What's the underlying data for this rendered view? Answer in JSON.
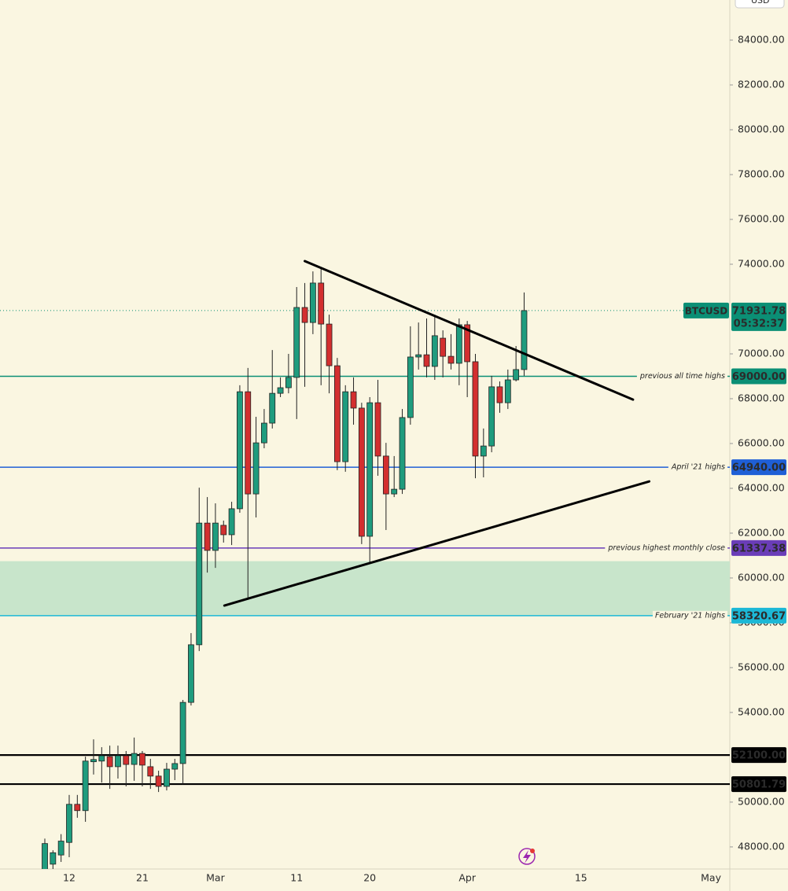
{
  "chart_data": {
    "type": "candlestick",
    "categories": [
      null,
      null,
      null,
      "12",
      null,
      null,
      null,
      null,
      null,
      null,
      null,
      null,
      "21",
      null,
      null,
      null,
      null,
      null,
      null,
      null,
      null,
      "Mar",
      null,
      null,
      null,
      null,
      null,
      null,
      null,
      null,
      null,
      "11",
      null,
      null,
      null,
      null,
      null,
      null,
      null,
      null,
      "20",
      null,
      null,
      null,
      null,
      null,
      null,
      null,
      null,
      null,
      null,
      null,
      "Apr",
      null,
      null,
      null,
      null,
      null,
      null,
      null,
      null,
      null,
      null,
      null,
      null,
      null,
      "15",
      null,
      null,
      null,
      null,
      null,
      null,
      null,
      null,
      null,
      null,
      null,
      null,
      null,
      null,
      null,
      "May"
    ],
    "series": [
      {
        "name": "BTCUSD",
        "up_color": "#1f9c7e",
        "down_color": "#d32f2f",
        "open": [
          46600,
          47230,
          47640,
          48200,
          49900,
          49620,
          51800,
          51830,
          52030,
          51580,
          52070,
          51680,
          52170,
          51580,
          51160,
          50700,
          51470,
          51720,
          54450,
          57020,
          62450,
          61230,
          62350,
          61930,
          63090,
          68310,
          63750,
          66030,
          66910,
          68240,
          68490,
          68950,
          72070,
          71400,
          73160,
          71330,
          69470,
          65190,
          68310,
          67580,
          61860,
          67820,
          65440,
          63750,
          63960,
          67160,
          69860,
          69960,
          69440,
          70700,
          69890,
          69580,
          71300,
          69650,
          65440,
          65890,
          68530,
          67820,
          68840,
          69300,
          null,
          null,
          null,
          null,
          null,
          null,
          null,
          null,
          null,
          null,
          null,
          null,
          null,
          null,
          null,
          null,
          null,
          null,
          null,
          null,
          null,
          null,
          null
        ],
        "high": [
          48370,
          47850,
          48570,
          50320,
          50320,
          52030,
          52800,
          52450,
          52520,
          52520,
          52280,
          52880,
          52280,
          51930,
          51400,
          51750,
          51930,
          54560,
          57540,
          64030,
          63610,
          63330,
          62560,
          63400,
          68600,
          69370,
          67190,
          67540,
          70170,
          68950,
          70000,
          72980,
          73160,
          73680,
          73790,
          71750,
          69820,
          68600,
          68950,
          67820,
          68070,
          68840,
          66030,
          65440,
          67540,
          71230,
          71400,
          71580,
          71750,
          71050,
          70880,
          71580,
          71470,
          70000,
          66670,
          69020,
          68770,
          69300,
          70350,
          72740,
          null,
          null,
          null,
          null,
          null,
          null,
          null,
          null,
          null,
          null,
          null,
          null,
          null,
          null,
          null,
          null,
          null,
          null,
          null,
          null,
          null,
          null,
          null
        ],
        "low": [
          46190,
          46820,
          47330,
          47540,
          49300,
          49120,
          51230,
          50870,
          50590,
          51050,
          50700,
          50950,
          50700,
          50590,
          50450,
          50520,
          50980,
          50800,
          54310,
          56740,
          60240,
          60450,
          61580,
          61470,
          62910,
          59120,
          62700,
          65790,
          66670,
          68070,
          68240,
          67090,
          68530,
          70880,
          68600,
          68240,
          64810,
          64740,
          66840,
          61510,
          60700,
          64560,
          62140,
          63610,
          63750,
          66840,
          69300,
          68950,
          68840,
          68950,
          69300,
          68600,
          68070,
          64450,
          64490,
          65610,
          67370,
          67540,
          68770,
          69020,
          null,
          null,
          null,
          null,
          null,
          null,
          null,
          null,
          null,
          null,
          null,
          null,
          null,
          null,
          null,
          null,
          null,
          null,
          null,
          null,
          null,
          null,
          null
        ],
        "close": [
          48150,
          47740,
          48260,
          49900,
          49620,
          51830,
          51900,
          52070,
          51580,
          52070,
          51680,
          52170,
          51650,
          51160,
          50700,
          51470,
          51720,
          54450,
          57020,
          62450,
          61230,
          62450,
          61930,
          63090,
          68310,
          63750,
          66030,
          66910,
          68240,
          68490,
          68950,
          72070,
          71400,
          73160,
          71330,
          69470,
          65190,
          68310,
          67580,
          61860,
          67820,
          65440,
          63750,
          63960,
          67160,
          69860,
          69960,
          69440,
          70810,
          69890,
          69580,
          71300,
          69650,
          65440,
          65890,
          68530,
          67820,
          68840,
          69300,
          71931.78,
          null,
          null,
          null,
          null,
          null,
          null,
          null,
          null,
          null,
          null,
          null,
          null,
          null,
          null,
          null,
          null,
          null,
          null,
          null,
          null,
          null,
          null,
          null
        ]
      }
    ],
    "countdown": "05:32:37",
    "currency": "USD",
    "ylim": [
      47015,
      85790
    ],
    "yticks": [
      {
        "value": 84000,
        "label": "84000.00"
      },
      {
        "value": 82000,
        "label": "82000.00"
      },
      {
        "value": 80000,
        "label": "80000.00"
      },
      {
        "value": 78000,
        "label": "78000.00"
      },
      {
        "value": 76000,
        "label": "76000.00"
      },
      {
        "value": 74000,
        "label": "74000.00"
      },
      {
        "value": 70000,
        "label": "70000.00"
      },
      {
        "value": 68000,
        "label": "68000.00"
      },
      {
        "value": 66000,
        "label": "66000.00"
      },
      {
        "value": 64000,
        "label": "64000.00"
      },
      {
        "value": 62000,
        "label": "62000.00"
      },
      {
        "value": 60000,
        "label": "60000.00"
      },
      {
        "value": 58000,
        "label": "58000.00"
      },
      {
        "value": 56000,
        "label": "56000.00"
      },
      {
        "value": 54000,
        "label": "54000.00"
      },
      {
        "value": 50000,
        "label": "50000.00"
      },
      {
        "value": 48000,
        "label": "48000.00"
      }
    ],
    "zone": {
      "from": 58320.67,
      "to": 60750,
      "color": "#c8e5cb"
    },
    "levels": [
      {
        "value": 69000,
        "label": "69000.00",
        "note": "previous all time highs",
        "color": "#0b8f75",
        "text_color": "#ffffff"
      },
      {
        "value": 64940,
        "label": "64940.00",
        "note": "April '21 highs",
        "color": "#1f5fd6",
        "text_color": "#ffffff"
      },
      {
        "value": 61337.38,
        "label": "61337.38",
        "note": "previous highest monthly close",
        "color": "#6a3db8",
        "text_color": "#ffffff"
      },
      {
        "value": 58320.67,
        "label": "58320.67",
        "note": "February '21 highs",
        "color": "#1cb8d6",
        "text_color": "#000000"
      },
      {
        "value": 52100,
        "label": "52100.00",
        "color": "#000000",
        "text_color": "#ffffff"
      },
      {
        "value": 50801.79,
        "label": "50801.79",
        "color": "#000000",
        "text_color": "#ffffff"
      }
    ],
    "trendlines": [
      {
        "points": [
          [
            32,
            74140
          ],
          [
            72.4,
            67960
          ]
        ]
      },
      {
        "points": [
          [
            22.1,
            58770
          ],
          [
            74.4,
            64310
          ]
        ]
      }
    ]
  }
}
